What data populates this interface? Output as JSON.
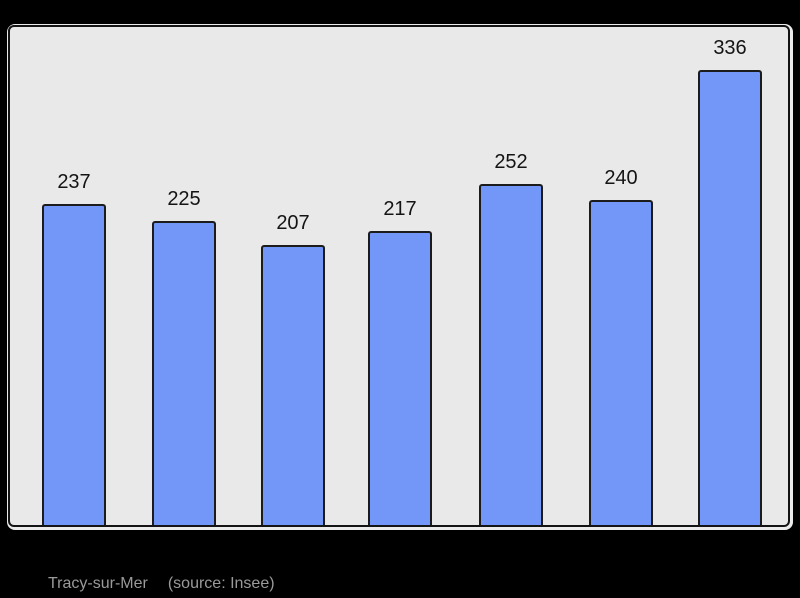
{
  "page": {
    "background_color": "#000000"
  },
  "caption": {
    "title": "Tracy-sur-Mer",
    "source": "(source: Insee)",
    "text_color": "#9a9a9a"
  },
  "chart_data": {
    "type": "bar",
    "values": [
      237,
      225,
      207,
      217,
      252,
      240,
      336
    ],
    "title": "",
    "xlabel": "",
    "ylabel": "",
    "ylim": [
      0,
      368
    ],
    "grid": false,
    "legend": false,
    "bar_color": "#7297f8",
    "bar_border_color": "#1c1c1c",
    "plot_background_color": "#e9e9e9",
    "frame_border_color": "#141414",
    "value_label_color": "#141414"
  }
}
